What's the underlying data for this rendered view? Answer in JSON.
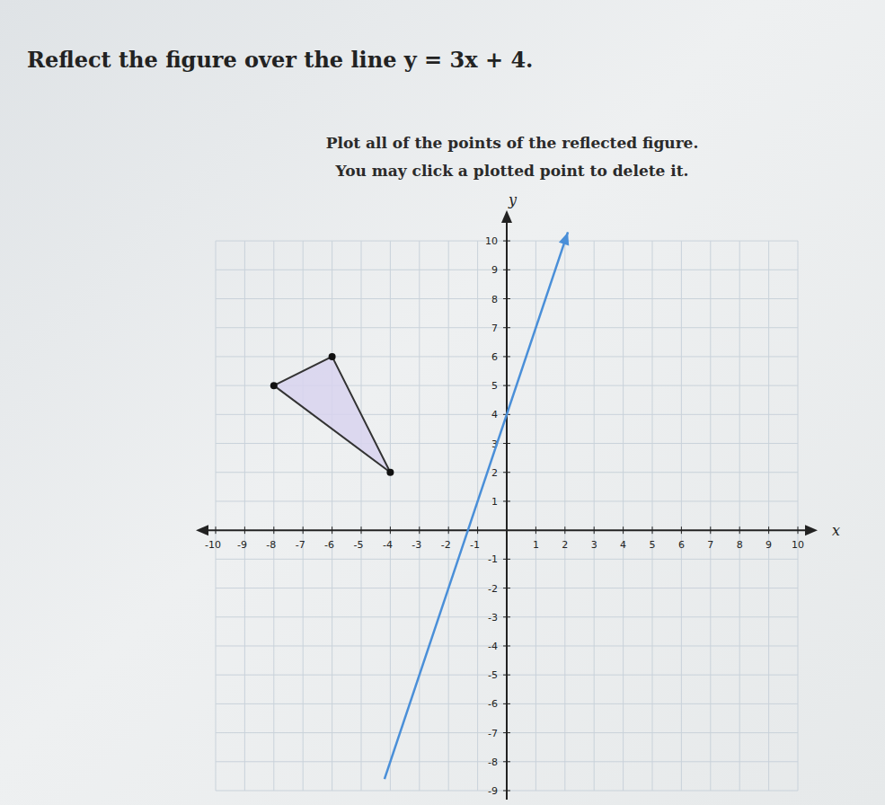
{
  "chart_data": {
    "type": "scatter",
    "title": "Reflect the figure over the line y = 3x + 4.",
    "annotations": [
      "Plot all of the points of the reflected figure.",
      "You may click a plotted point to delete it."
    ],
    "xlabel": "x",
    "ylabel": "y",
    "xlim": [
      -10,
      10
    ],
    "ylim": [
      -9,
      10.5
    ],
    "xticks": [
      -10,
      -9,
      -8,
      -7,
      -6,
      -5,
      -4,
      -3,
      -2,
      -1,
      1,
      2,
      3,
      4,
      5,
      6,
      7,
      8,
      9,
      10
    ],
    "yticks": [
      -9,
      -8,
      -7,
      -6,
      -5,
      -4,
      -3,
      -2,
      -1,
      1,
      2,
      3,
      4,
      5,
      6,
      7,
      8,
      9,
      10
    ],
    "grid": true,
    "series": [
      {
        "type": "polygon",
        "color": "#d8d3ef",
        "marker": "circle",
        "x": [
          -8,
          -6,
          -4
        ],
        "values": [
          5,
          6,
          2
        ]
      },
      {
        "type": "line",
        "color": "#4a8fd8",
        "x": [
          -4.2,
          2.1
        ],
        "values": [
          -8.6,
          10.3
        ]
      }
    ]
  }
}
